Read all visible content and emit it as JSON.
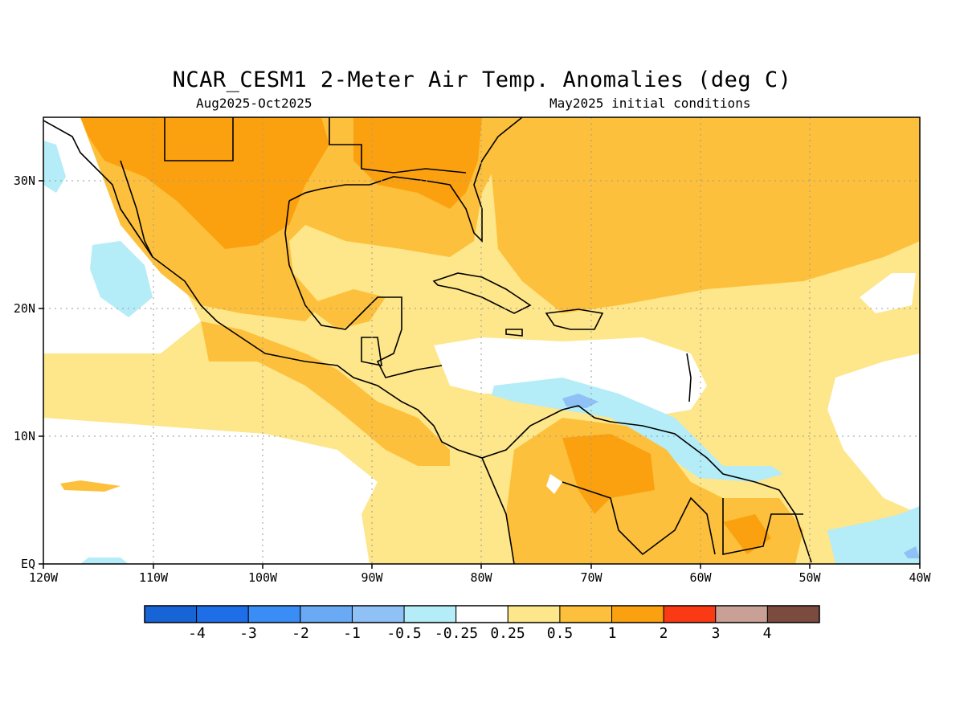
{
  "header": {
    "title": "NCAR_CESM1 2-Meter Air Temp. Anomalies (deg C)",
    "period": "Aug2025-Oct2025",
    "init": "May2025 initial conditions"
  },
  "axes": {
    "lon_labels": [
      "120W",
      "110W",
      "100W",
      "90W",
      "80W",
      "70W",
      "60W",
      "50W",
      "40W"
    ],
    "lat_labels": [
      "EQ",
      "10N",
      "20N",
      "30N"
    ]
  },
  "colorbar": {
    "colors": [
      "#1764d6",
      "#1e6ee8",
      "#3a8df4",
      "#6aa9f4",
      "#8fc0f6",
      "#b4ecf8",
      "#ffffff",
      "#fee68a",
      "#fdc03c",
      "#fba10f",
      "#fa3a14",
      "#c9a095",
      "#7b4b40"
    ],
    "labels": [
      "-4",
      "-3",
      "-2",
      "-1",
      "-0.5",
      "-0.25",
      "0.25",
      "0.5",
      "1",
      "2",
      "3",
      "4"
    ]
  },
  "map": {
    "region": {
      "lon": [
        -120,
        -40
      ],
      "lat": [
        0,
        35
      ]
    }
  }
}
